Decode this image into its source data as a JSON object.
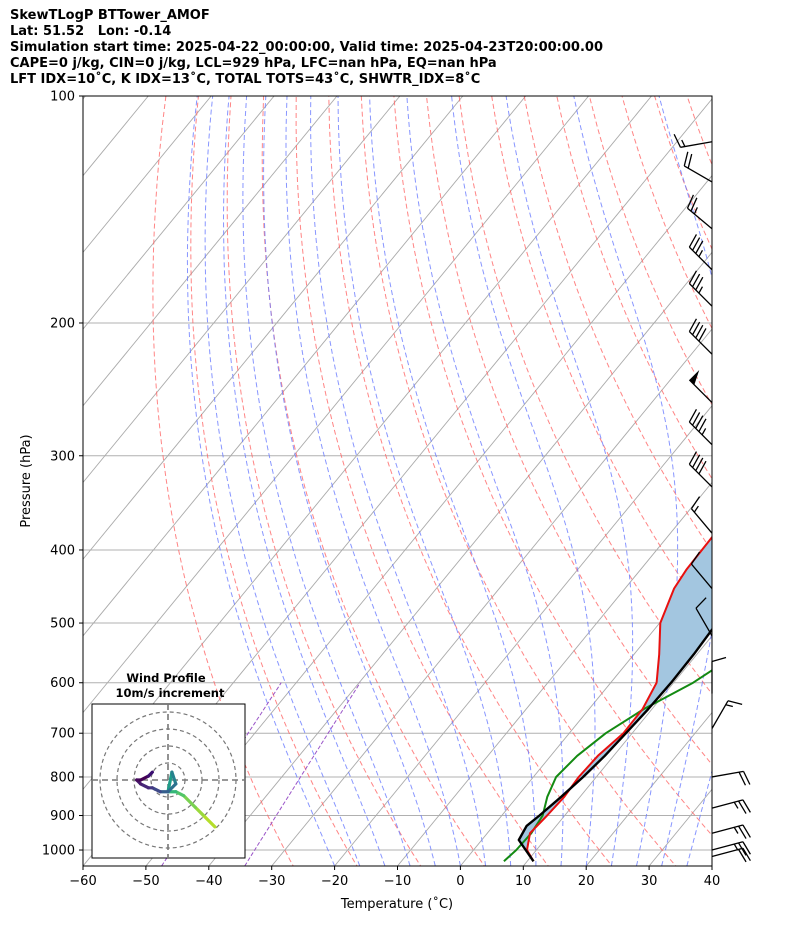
{
  "header": {
    "line1": "SkewTLogP BTTower_AMOF",
    "line2": "Lat: 51.52   Lon: -0.14",
    "line3": "Simulation start time: 2025-04-22_00:00:00, Valid time: 2025-04-23T20:00:00.00",
    "line4": "CAPE=0 j/kg, CIN=0 j/kg, LCL=929 hPa, LFC=nan hPa, EQ=nan hPa",
    "line5": "LFT IDX=10˚C, K IDX=13˚C, TOTAL TOTS=43˚C, SHWTR_IDX=8˚C"
  },
  "chart_data": {
    "type": "line",
    "xlabel": "Temperature (˚C)",
    "ylabel": "Pressure (hPa)",
    "xlim": [
      -60,
      40
    ],
    "ylim": [
      1050,
      100
    ],
    "yscale": "log",
    "grid": true,
    "x_ticks": [
      -60,
      -50,
      -40,
      -30,
      -20,
      -10,
      0,
      10,
      20,
      30,
      40
    ],
    "y_ticks": [
      100,
      200,
      300,
      400,
      500,
      600,
      700,
      800,
      900,
      1000
    ],
    "colors": {
      "temperature": "#e8100f",
      "dewpoint": "#138a12",
      "parcel": "#000000",
      "shade": "#a3c6e0",
      "dry_adiabat": "#ff6666",
      "moist_adiabat": "#6a7cff",
      "mixing_ratio": "#9a55c8",
      "isotherm": "#aaaaaa"
    },
    "series": [
      {
        "key": "temperature",
        "points": [
          [
            1035,
            11
          ],
          [
            1000,
            8.5
          ],
          [
            950,
            6.8
          ],
          [
            900,
            7.2
          ],
          [
            850,
            7.5
          ],
          [
            800,
            7.2
          ],
          [
            750,
            7.5
          ],
          [
            700,
            8.6
          ],
          [
            650,
            8.5
          ],
          [
            600,
            7.3
          ],
          [
            550,
            4
          ],
          [
            500,
            0.1
          ],
          [
            450,
            -2.2
          ],
          [
            425,
            -2.7
          ],
          [
            400,
            -2.8
          ],
          [
            370,
            -2.9
          ],
          [
            340,
            -3.1
          ],
          [
            310,
            -3.6
          ],
          [
            290,
            -6
          ],
          [
            270,
            -7.8
          ],
          [
            250,
            -8.8
          ],
          [
            230,
            -10
          ],
          [
            210,
            -11.4
          ],
          [
            190,
            -12.8
          ],
          [
            170,
            -14.2
          ],
          [
            160,
            -15.5
          ],
          [
            150,
            -16.7
          ],
          [
            140,
            -20.3
          ],
          [
            130,
            -23.3
          ],
          [
            120,
            -27
          ],
          [
            110,
            -30.4
          ],
          [
            100,
            -34
          ]
        ]
      },
      {
        "key": "dewpoint",
        "points": [
          [
            1035,
            6.3
          ],
          [
            1000,
            6.8
          ],
          [
            950,
            7
          ],
          [
            900,
            6.5
          ],
          [
            850,
            4.8
          ],
          [
            800,
            3.6
          ],
          [
            750,
            4.2
          ],
          [
            700,
            5.8
          ],
          [
            650,
            8.7
          ],
          [
            600,
            13.1
          ],
          [
            550,
            16.3
          ],
          [
            500,
            19.4
          ],
          [
            480,
            21.3
          ],
          [
            460,
            22.2
          ],
          [
            440,
            22.9
          ],
          [
            420,
            24.1
          ],
          [
            400,
            24.5
          ],
          [
            380,
            24.9
          ],
          [
            360,
            25.3
          ],
          [
            340,
            24.1
          ],
          [
            320,
            21.7
          ],
          [
            310,
            24.3
          ],
          [
            300,
            25.5
          ],
          [
            290,
            25.5
          ],
          [
            270,
            28.2
          ],
          [
            250,
            30.9
          ],
          [
            230,
            30.3
          ],
          [
            210,
            30.7
          ],
          [
            190,
            27.5
          ],
          [
            170,
            23.4
          ],
          [
            160,
            24.6
          ],
          [
            150,
            25.7
          ],
          [
            130,
            28.7
          ],
          [
            110,
            32.7
          ],
          [
            100,
            34.6
          ]
        ]
      },
      {
        "key": "parcel",
        "points": [
          [
            1035,
            11
          ],
          [
            970,
            5.9
          ],
          [
            929,
            5.3
          ],
          [
            900,
            6
          ],
          [
            850,
            7
          ],
          [
            800,
            7.9
          ],
          [
            750,
            8.6
          ],
          [
            700,
            9
          ],
          [
            650,
            9.4
          ],
          [
            600,
            9.6
          ],
          [
            550,
            9.5
          ],
          [
            500,
            9.1
          ],
          [
            450,
            8.3
          ],
          [
            400,
            7.1
          ],
          [
            350,
            5.2
          ],
          [
            300,
            2.8
          ],
          [
            250,
            -0.6
          ],
          [
            200,
            -5.4
          ],
          [
            150,
            -11.8
          ],
          [
            120,
            -16.5
          ],
          [
            100,
            -20.4
          ]
        ]
      }
    ],
    "wind_barbs": [
      {
        "p": 115,
        "speed_kt": 15,
        "dir_deg": 260
      },
      {
        "p": 130,
        "speed_kt": 20,
        "dir_deg": 300
      },
      {
        "p": 150,
        "speed_kt": 25,
        "dir_deg": 310
      },
      {
        "p": 170,
        "speed_kt": 35,
        "dir_deg": 315
      },
      {
        "p": 190,
        "speed_kt": 35,
        "dir_deg": 315
      },
      {
        "p": 220,
        "speed_kt": 40,
        "dir_deg": 315
      },
      {
        "p": 255,
        "speed_kt": 50,
        "dir_deg": 315
      },
      {
        "p": 290,
        "speed_kt": 45,
        "dir_deg": 315
      },
      {
        "p": 330,
        "speed_kt": 40,
        "dir_deg": 315
      },
      {
        "p": 380,
        "speed_kt": 15,
        "dir_deg": 320
      },
      {
        "p": 450,
        "speed_kt": 10,
        "dir_deg": 320
      },
      {
        "p": 520,
        "speed_kt": 10,
        "dir_deg": 330
      },
      {
        "p": 620,
        "speed_kt": 10,
        "dir_deg": 0
      },
      {
        "p": 690,
        "speed_kt": 15,
        "dir_deg": 30
      },
      {
        "p": 800,
        "speed_kt": 20,
        "dir_deg": 80
      },
      {
        "p": 880,
        "speed_kt": 25,
        "dir_deg": 75
      },
      {
        "p": 950,
        "speed_kt": 25,
        "dir_deg": 75
      },
      {
        "p": 1000,
        "speed_kt": 25,
        "dir_deg": 75
      },
      {
        "p": 1020,
        "speed_kt": 20,
        "dir_deg": 75
      }
    ],
    "hodograph": {
      "title": "Wind Profile",
      "subtitle": "10m/s increment",
      "points": [
        [
          12,
          -12
        ],
        [
          9,
          -9
        ],
        [
          7,
          -7
        ],
        [
          4,
          -4
        ],
        [
          2,
          -3
        ],
        [
          0,
          -3
        ],
        [
          1,
          2
        ],
        [
          2,
          -1
        ],
        [
          0,
          -3
        ],
        [
          -2,
          -3
        ],
        [
          -4,
          -2
        ],
        [
          -5,
          -2
        ],
        [
          -7,
          -1
        ],
        [
          -8,
          0
        ],
        [
          -7,
          0
        ],
        [
          -5,
          1
        ],
        [
          -4,
          2
        ]
      ]
    }
  }
}
